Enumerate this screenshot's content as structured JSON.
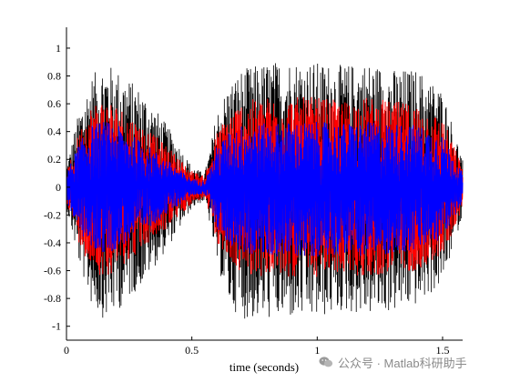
{
  "chart_data": {
    "type": "line",
    "title": "",
    "xlabel": "time (seconds)",
    "ylabel": "",
    "xlim": [
      0,
      1.58
    ],
    "ylim": [
      -1.1,
      1.15
    ],
    "xticks": [
      "0",
      "0.5",
      "1",
      "1.5"
    ],
    "xtick_values": [
      0,
      0.5,
      1,
      1.5
    ],
    "yticks": [
      "-1",
      "-0.8",
      "-0.6",
      "-0.4",
      "-0.2",
      "0",
      "0.2",
      "0.4",
      "0.6",
      "0.8",
      "1"
    ],
    "ytick_values": [
      -1,
      -0.8,
      -0.6,
      -0.4,
      -0.2,
      0,
      0.2,
      0.4,
      0.6,
      0.8,
      1
    ],
    "grid": false,
    "series": [
      {
        "color": "#000000",
        "envelope": {
          "t": [
            0,
            0.05,
            0.1,
            0.15,
            0.2,
            0.3,
            0.4,
            0.5,
            0.55,
            0.57,
            0.6,
            0.65,
            0.7,
            0.8,
            0.9,
            1.0,
            1.1,
            1.2,
            1.3,
            1.4,
            1.5,
            1.58
          ],
          "upper": [
            0.15,
            0.55,
            0.8,
            0.9,
            0.85,
            0.7,
            0.45,
            0.15,
            0.1,
            0.25,
            0.55,
            0.75,
            0.85,
            0.9,
            0.92,
            0.9,
            0.88,
            0.9,
            0.85,
            0.85,
            0.7,
            0.2
          ],
          "lower": [
            -0.15,
            -0.55,
            -0.85,
            -0.95,
            -0.9,
            -0.7,
            -0.45,
            -0.15,
            -0.1,
            -0.25,
            -0.55,
            -0.85,
            -0.95,
            -0.95,
            -0.95,
            -0.95,
            -0.9,
            -0.92,
            -0.9,
            -0.85,
            -0.7,
            -0.2
          ]
        }
      },
      {
        "color": "#ff0000",
        "envelope": {
          "t": [
            0,
            0.05,
            0.1,
            0.15,
            0.2,
            0.3,
            0.4,
            0.5,
            0.55,
            0.57,
            0.6,
            0.65,
            0.7,
            0.8,
            0.9,
            1.0,
            1.1,
            1.2,
            1.3,
            1.4,
            1.5,
            1.58
          ],
          "upper": [
            0.1,
            0.4,
            0.6,
            0.65,
            0.6,
            0.45,
            0.3,
            0.12,
            0.08,
            0.2,
            0.4,
            0.55,
            0.62,
            0.65,
            0.65,
            0.65,
            0.62,
            0.65,
            0.62,
            0.6,
            0.5,
            0.15
          ],
          "lower": [
            -0.1,
            -0.4,
            -0.6,
            -0.65,
            -0.6,
            -0.45,
            -0.3,
            -0.12,
            -0.08,
            -0.2,
            -0.4,
            -0.55,
            -0.62,
            -0.65,
            -0.65,
            -0.65,
            -0.62,
            -0.65,
            -0.62,
            -0.6,
            -0.5,
            -0.15
          ]
        }
      },
      {
        "color": "#0000ff",
        "envelope": {
          "t": [
            0,
            0.05,
            0.1,
            0.15,
            0.2,
            0.3,
            0.4,
            0.5,
            0.55,
            0.57,
            0.6,
            0.65,
            0.7,
            0.8,
            0.9,
            1.0,
            1.1,
            1.2,
            1.3,
            1.4,
            1.5,
            1.58
          ],
          "upper": [
            0.1,
            0.32,
            0.45,
            0.48,
            0.45,
            0.33,
            0.2,
            0.06,
            0.05,
            0.12,
            0.3,
            0.4,
            0.45,
            0.46,
            0.47,
            0.47,
            0.46,
            0.47,
            0.46,
            0.45,
            0.38,
            0.1
          ],
          "lower": [
            -0.1,
            -0.32,
            -0.45,
            -0.48,
            -0.45,
            -0.33,
            -0.2,
            -0.06,
            -0.05,
            -0.12,
            -0.3,
            -0.42,
            -0.48,
            -0.5,
            -0.5,
            -0.5,
            -0.48,
            -0.5,
            -0.48,
            -0.46,
            -0.38,
            -0.1
          ]
        }
      }
    ]
  },
  "watermark": {
    "icon": "wechat-icon",
    "text": "公众号 · Matlab科研助手"
  }
}
